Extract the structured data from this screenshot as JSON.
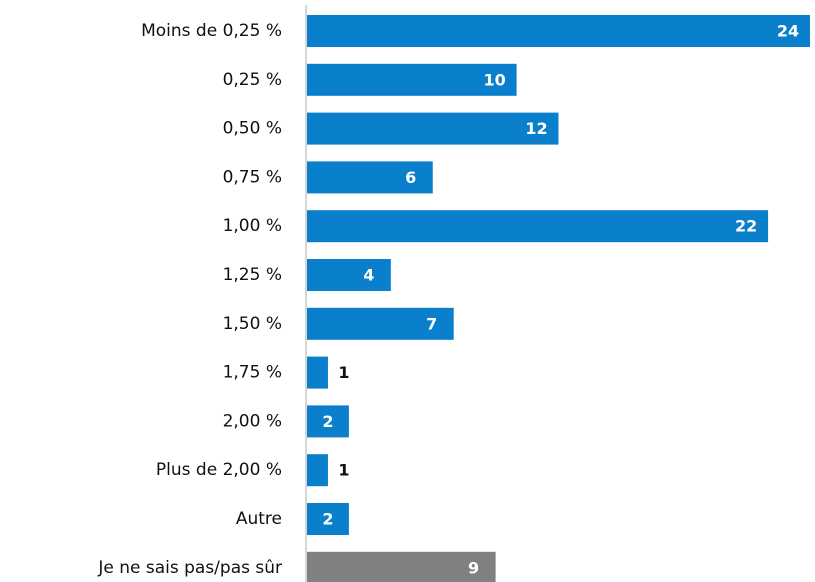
{
  "chart_data": {
    "type": "barh",
    "categories": [
      "Moins de 0,25 %",
      "0,25 %",
      "0,50 %",
      "0,75 %",
      "1,00 %",
      "1,25 %",
      "1,50 %",
      "1,75 %",
      "2,00 %",
      "Plus de 2,00 %",
      "Autre",
      "Je ne sais pas/pas sûr"
    ],
    "values": [
      24,
      10,
      12,
      6,
      22,
      4,
      7,
      1,
      2,
      1,
      2,
      9
    ],
    "colors": [
      "#0a7fcc",
      "#0a7fcc",
      "#0a7fcc",
      "#0a7fcc",
      "#0a7fcc",
      "#0a7fcc",
      "#0a7fcc",
      "#0a7fcc",
      "#0a7fcc",
      "#0a7fcc",
      "#0a7fcc",
      "#808080"
    ]
  }
}
